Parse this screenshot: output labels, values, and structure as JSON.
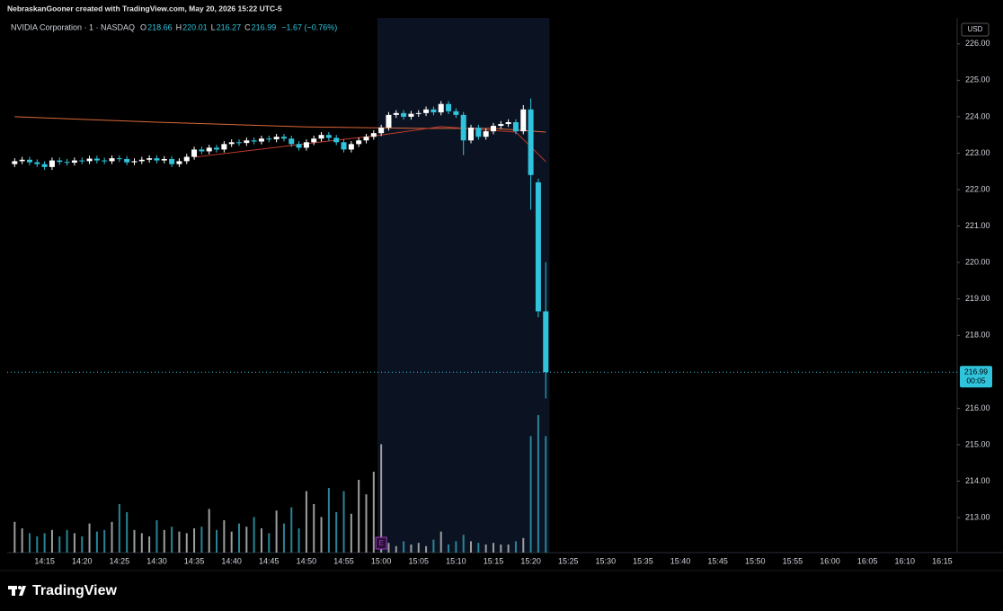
{
  "header": "NebraskanGooner created with TradingView.com, May 20, 2026 15:22 UTC-5",
  "footer_logo": "TradingView",
  "chart_data": {
    "type": "candlestick",
    "symbol": "NVIDIA Corporation · 1 · NASDAQ",
    "ohlc_legend": [
      {
        "label": "O",
        "value": 218.66
      },
      {
        "label": "H",
        "value": 220.01
      },
      {
        "label": "L",
        "value": 216.27
      },
      {
        "label": "C",
        "value": 216.99
      }
    ],
    "change": "−1.67 (−0.76%)",
    "currency": "USD",
    "x": [
      "14:11",
      "14:12",
      "14:13",
      "14:14",
      "14:15",
      "14:16",
      "14:17",
      "14:18",
      "14:19",
      "14:20",
      "14:21",
      "14:22",
      "14:23",
      "14:24",
      "14:25",
      "14:26",
      "14:27",
      "14:28",
      "14:29",
      "14:30",
      "14:31",
      "14:32",
      "14:33",
      "14:34",
      "14:35",
      "14:36",
      "14:37",
      "14:38",
      "14:39",
      "14:40",
      "14:41",
      "14:42",
      "14:43",
      "14:44",
      "14:45",
      "14:46",
      "14:47",
      "14:48",
      "14:49",
      "14:50",
      "14:51",
      "14:52",
      "14:53",
      "14:54",
      "14:55",
      "14:56",
      "14:57",
      "14:58",
      "14:59",
      "15:00",
      "15:01",
      "15:02",
      "15:03",
      "15:04",
      "15:05",
      "15:06",
      "15:07",
      "15:08",
      "15:09",
      "15:10",
      "15:11",
      "15:12",
      "15:13",
      "15:14",
      "15:15",
      "15:16",
      "15:17",
      "15:18",
      "15:19",
      "15:20",
      "15:21",
      "15:22"
    ],
    "open": [
      222.7,
      222.78,
      222.82,
      222.75,
      222.7,
      222.62,
      222.8,
      222.76,
      222.74,
      222.8,
      222.78,
      222.85,
      222.8,
      222.78,
      222.86,
      222.84,
      222.75,
      222.78,
      222.82,
      222.86,
      222.8,
      222.84,
      222.7,
      222.78,
      222.9,
      223.1,
      223.05,
      223.15,
      223.1,
      223.25,
      223.3,
      223.28,
      223.35,
      223.32,
      223.4,
      223.38,
      223.45,
      223.4,
      223.25,
      223.15,
      223.3,
      223.4,
      223.5,
      223.42,
      223.3,
      223.1,
      223.25,
      223.35,
      223.45,
      223.55,
      223.7,
      224.05,
      224.1,
      224.0,
      224.08,
      224.1,
      224.2,
      224.12,
      224.35,
      224.15,
      224.05,
      223.35,
      223.7,
      223.45,
      223.6,
      223.75,
      223.8,
      223.85,
      223.6,
      224.2,
      222.2,
      218.66
    ],
    "high": [
      222.86,
      222.9,
      222.9,
      222.83,
      222.78,
      222.88,
      222.88,
      222.84,
      222.88,
      222.88,
      222.93,
      222.93,
      222.88,
      222.94,
      222.94,
      222.92,
      222.86,
      222.9,
      222.94,
      222.94,
      222.92,
      222.92,
      222.86,
      222.98,
      223.18,
      223.18,
      223.23,
      223.23,
      223.33,
      223.38,
      223.38,
      223.43,
      223.43,
      223.48,
      223.48,
      223.53,
      223.53,
      223.48,
      223.33,
      223.38,
      223.48,
      223.58,
      223.58,
      223.5,
      223.38,
      223.33,
      223.43,
      223.53,
      223.63,
      223.78,
      224.13,
      224.18,
      224.18,
      224.16,
      224.18,
      224.28,
      224.28,
      224.43,
      224.43,
      224.23,
      224.13,
      223.78,
      223.78,
      223.68,
      223.83,
      223.88,
      223.93,
      223.93,
      224.32,
      224.5,
      222.3,
      220.01
    ],
    "low": [
      222.62,
      222.7,
      222.67,
      222.62,
      222.54,
      222.54,
      222.68,
      222.66,
      222.66,
      222.7,
      222.7,
      222.72,
      222.7,
      222.7,
      222.76,
      222.67,
      222.67,
      222.7,
      222.74,
      222.72,
      222.72,
      222.62,
      222.62,
      222.7,
      222.82,
      222.97,
      222.97,
      223.02,
      223.02,
      223.17,
      223.2,
      223.2,
      223.24,
      223.24,
      223.3,
      223.3,
      223.32,
      223.17,
      223.07,
      223.07,
      223.22,
      223.32,
      223.34,
      223.22,
      223.02,
      223.02,
      223.17,
      223.27,
      223.37,
      223.47,
      223.62,
      223.97,
      223.92,
      223.92,
      224.0,
      224.02,
      224.04,
      224.04,
      224.07,
      223.97,
      222.95,
      223.27,
      223.37,
      223.37,
      223.52,
      223.67,
      223.72,
      223.52,
      223.52,
      221.45,
      218.5,
      216.27
    ],
    "close": [
      222.78,
      222.82,
      222.75,
      222.7,
      222.62,
      222.8,
      222.76,
      222.74,
      222.8,
      222.78,
      222.85,
      222.8,
      222.78,
      222.86,
      222.84,
      222.75,
      222.78,
      222.82,
      222.86,
      222.8,
      222.84,
      222.7,
      222.78,
      222.9,
      223.1,
      223.05,
      223.15,
      223.1,
      223.25,
      223.3,
      223.28,
      223.35,
      223.32,
      223.4,
      223.38,
      223.45,
      223.4,
      223.25,
      223.15,
      223.3,
      223.4,
      223.5,
      223.42,
      223.3,
      223.1,
      223.25,
      223.35,
      223.45,
      223.55,
      223.7,
      224.05,
      224.1,
      224.0,
      224.08,
      224.1,
      224.2,
      224.12,
      224.35,
      224.15,
      224.05,
      223.35,
      223.7,
      223.45,
      223.6,
      223.75,
      223.8,
      223.85,
      223.6,
      224.2,
      222.4,
      218.66,
      216.99
    ],
    "volume": [
      19,
      15,
      12,
      10,
      12,
      14,
      10,
      14,
      12,
      10,
      18,
      13,
      14,
      19,
      30,
      25,
      14,
      12,
      10,
      20,
      14,
      16,
      13,
      12,
      15,
      16,
      27,
      14,
      20,
      13,
      18,
      16,
      22,
      15,
      12,
      26,
      18,
      28,
      15,
      38,
      30,
      22,
      40,
      25,
      38,
      24,
      45,
      36,
      50,
      67,
      6,
      4,
      7,
      5,
      6,
      4,
      8,
      13,
      5,
      7,
      11,
      7,
      6,
      5,
      6,
      5,
      5,
      7,
      9,
      72,
      85,
      72
    ],
    "vlim": [
      0,
      100
    ],
    "up_color": "#ffffff",
    "down_color": "#2fc4dc",
    "volume_up_color": "#9e9e9e",
    "volume_down_color": "#2a8496",
    "overlays": [
      {
        "color": "#d9683a",
        "x": [
          "14:11",
          "14:30",
          "14:50",
          "15:05",
          "15:15",
          "15:22"
        ],
        "values": [
          224.0,
          223.85,
          223.72,
          223.68,
          223.68,
          223.58
        ]
      },
      {
        "color": "#c0392b",
        "x": [
          "14:35",
          "14:50",
          "15:00",
          "15:08",
          "15:18",
          "15:22"
        ],
        "values": [
          222.89,
          223.26,
          223.5,
          223.73,
          223.58,
          222.77
        ]
      }
    ],
    "last_price": {
      "value": 216.99,
      "countdown": "00:05"
    },
    "highlight": [
      "15:00",
      "15:22"
    ],
    "highlight_color": "#0b1322",
    "event_marker": {
      "x": "15:00",
      "label": "E",
      "color": "#9c3fbf"
    },
    "xlim": [
      "14:10",
      "16:17"
    ],
    "xticks": [
      "14:15",
      "14:20",
      "14:25",
      "14:30",
      "14:35",
      "14:40",
      "14:45",
      "14:50",
      "14:55",
      "15:00",
      "15:05",
      "15:10",
      "15:15",
      "15:20",
      "15:25",
      "15:30",
      "15:35",
      "15:40",
      "15:45",
      "15:50",
      "15:55",
      "16:00",
      "16:05",
      "16:10",
      "16:15"
    ],
    "ylim": [
      212.04,
      226.71
    ],
    "yticks": [
      {
        "value": 213,
        "label": "213.00"
      },
      {
        "value": 214,
        "label": "214.00"
      },
      {
        "value": 215,
        "label": "215.00"
      },
      {
        "value": 216,
        "label": "216.00"
      },
      {
        "value": 218,
        "label": "218.00"
      },
      {
        "value": 219,
        "label": "219.00"
      },
      {
        "value": 220,
        "label": "220.00"
      },
      {
        "value": 221,
        "label": "221.00"
      },
      {
        "value": 222,
        "label": "222.00"
      },
      {
        "value": 223,
        "label": "223.00"
      },
      {
        "value": 224,
        "label": "224.00"
      },
      {
        "value": 225,
        "label": "225.00"
      },
      {
        "value": 226,
        "label": "226.00"
      }
    ]
  }
}
